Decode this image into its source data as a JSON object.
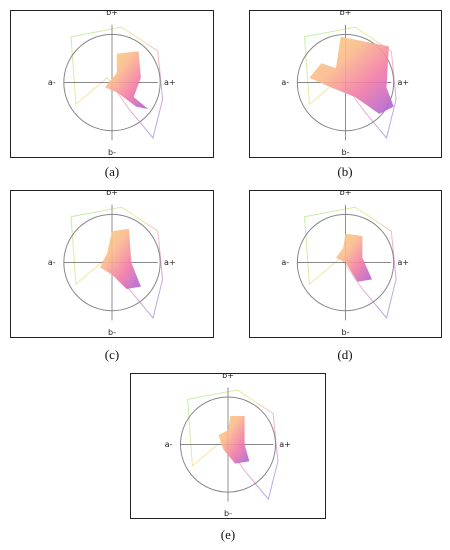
{
  "panels": [
    {
      "caption": "(a)",
      "labels": {
        "top": "b+",
        "bottom": "b-",
        "left": "a-",
        "right": "a+"
      }
    },
    {
      "caption": "(b)",
      "labels": {
        "top": "b+",
        "bottom": "b-",
        "left": "a-",
        "right": "a+"
      }
    },
    {
      "caption": "(c)",
      "labels": {
        "top": "b+",
        "bottom": "b-",
        "left": "a-",
        "right": "a+"
      }
    },
    {
      "caption": "(d)",
      "labels": {
        "top": "b+",
        "bottom": "b-",
        "left": "a-",
        "right": "a+"
      }
    },
    {
      "caption": "(e)",
      "labels": {
        "top": "b+",
        "bottom": "b-",
        "left": "a-",
        "right": "a+"
      }
    }
  ]
}
